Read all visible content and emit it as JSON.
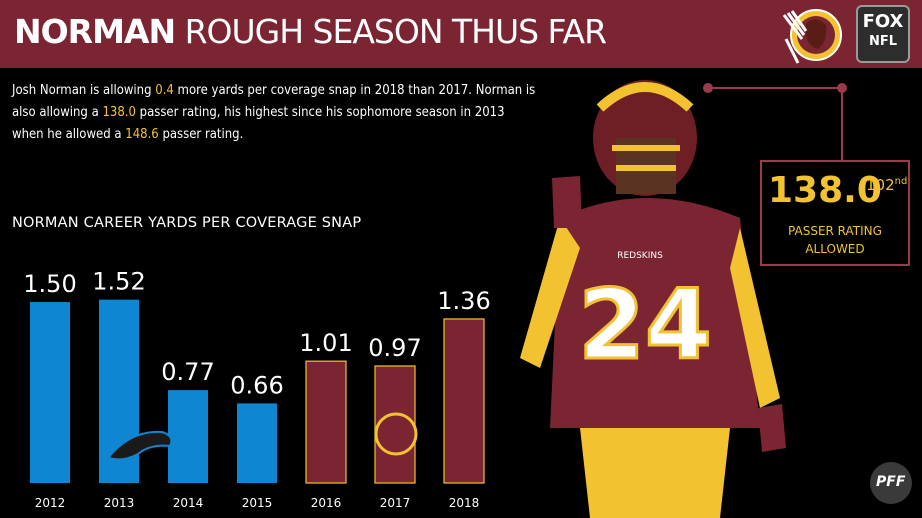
{
  "header": {
    "title_strong": "NORMAN",
    "title_rest": "ROUGH SEASON THUS FAR",
    "network_line1": "FOX",
    "network_line2": "NFL"
  },
  "summary": {
    "t1": "Josh Norman is allowing ",
    "h1": "0.4",
    "t2": " more yards per coverage snap in 2018 than 2017. Norman is also allowing a ",
    "h2": "138.0",
    "t3": " passer rating, his highest since his sophomore season in 2013 when he allowed a ",
    "h3": "148.6",
    "t4": " passer rating."
  },
  "rating": {
    "value": "138.0",
    "rank_num": "102",
    "rank_suffix": "nd",
    "label_line1": "PASSER RATING",
    "label_line2": "ALLOWED"
  },
  "player": {
    "jersey_number": "24",
    "jersey_text": "REDSKINS"
  },
  "watermark": "PFF",
  "colors": {
    "panthers_blue": "#0f86d2",
    "redskins_burgundy": "#7b2533",
    "gold": "#f2c230"
  },
  "chart_data": {
    "type": "bar",
    "title": "NORMAN CAREER YARDS PER COVERAGE SNAP",
    "categories": [
      "2012",
      "2013",
      "2014",
      "2015",
      "2016",
      "2017",
      "2018"
    ],
    "values": [
      1.5,
      1.52,
      0.77,
      0.66,
      1.01,
      0.97,
      1.36
    ],
    "labels": [
      "1.50",
      "1.52",
      "0.77",
      "0.66",
      "1.01",
      "0.97",
      "1.36"
    ],
    "teams": [
      "panthers",
      "panthers",
      "panthers",
      "panthers",
      "redskins",
      "redskins",
      "redskins"
    ],
    "ylim": [
      0,
      1.6
    ],
    "grid": false
  }
}
